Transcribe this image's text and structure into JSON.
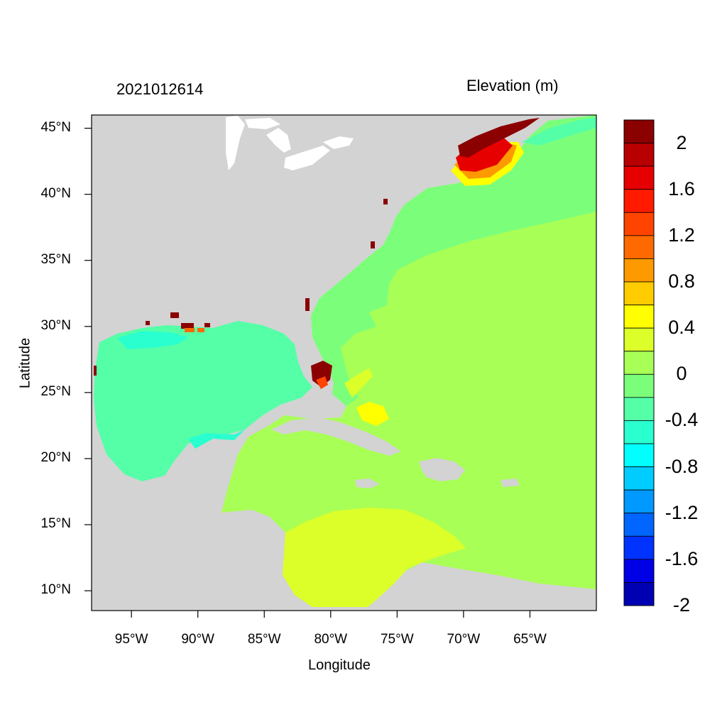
{
  "header": {
    "timestamp": "2021012614",
    "variable_title": "Elevation (m)"
  },
  "axes": {
    "xlabel": "Longitude",
    "ylabel": "Latitude",
    "lon_ticks": [
      "95°W",
      "90°W",
      "85°W",
      "80°W",
      "75°W",
      "70°W",
      "65°W"
    ],
    "lat_ticks": [
      "45°N",
      "40°N",
      "35°N",
      "30°N",
      "25°N",
      "20°N",
      "15°N",
      "10°N"
    ],
    "lon_range": [
      -98,
      -60
    ],
    "lat_range": [
      8.5,
      46
    ]
  },
  "colorbar": {
    "labels": [
      "2",
      "1.6",
      "1.2",
      "0.8",
      "0.4",
      "0",
      "-0.4",
      "-0.8",
      "-1.2",
      "-1.6",
      "-2"
    ],
    "colors": [
      "#8b0000",
      "#b80000",
      "#e60000",
      "#ff1a00",
      "#ff4400",
      "#ff6a00",
      "#ff9900",
      "#ffcc00",
      "#ffff00",
      "#dcff2a",
      "#a8ff55",
      "#7bff7b",
      "#55ffa8",
      "#2affd0",
      "#00ffff",
      "#00ccff",
      "#0099ff",
      "#0066ff",
      "#0033ff",
      "#0000e6",
      "#0000b3"
    ]
  },
  "map": {
    "land_color": "#d3d3d3",
    "region": "Western Atlantic, Gulf of Mexico and Caribbean Sea",
    "max_surge_region": "Gulf of Maine",
    "notable_colors": {
      "gulf_of_mexico": "#55ffa8",
      "open_atlantic": "#a8ff55",
      "coastal_atlantic": "#7bff7b",
      "southern_caribbean": "#dcff2a",
      "gulf_of_maine_peak": "#8b0000"
    }
  }
}
